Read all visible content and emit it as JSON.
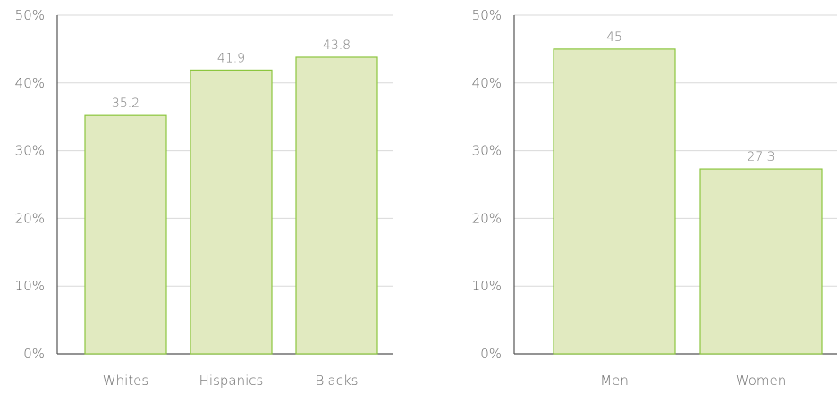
{
  "colors": {
    "bar_fill": "#e1eac0",
    "bar_stroke": "#8cc63f"
  },
  "chart_data": [
    {
      "type": "bar",
      "categories": [
        "Whites",
        "Hispanics",
        "Blacks"
      ],
      "values": [
        35.2,
        41.9,
        43.8
      ],
      "data_labels": [
        "35.2",
        "41.9",
        "43.8"
      ],
      "ylim": [
        0,
        50
      ],
      "yticks": [
        "0%",
        "10%",
        "20%",
        "30%",
        "40%",
        "50%"
      ],
      "grid": true
    },
    {
      "type": "bar",
      "categories": [
        "Men",
        "Women"
      ],
      "values": [
        45,
        27.3
      ],
      "data_labels": [
        "45",
        "27.3"
      ],
      "ylim": [
        0,
        50
      ],
      "yticks": [
        "0%",
        "10%",
        "20%",
        "30%",
        "40%",
        "50%"
      ],
      "grid": true
    }
  ]
}
